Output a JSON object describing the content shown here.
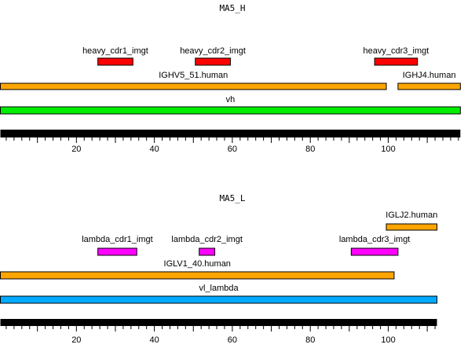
{
  "colors": {
    "cdr_heavy": "#ff0000",
    "cdr_lambda": "#ff00ff",
    "gene": "#ffa500",
    "vh": "#00ee00",
    "vl_lambda": "#00aaff",
    "scale": "#000000",
    "outline": "#000000"
  },
  "panels": [
    {
      "title": "MA5_H",
      "features": [
        {
          "name": "heavy_cdr1_imgt",
          "start": 26,
          "end": 34,
          "color": "#ff0000"
        },
        {
          "name": "heavy_cdr2_imgt",
          "start": 51,
          "end": 59,
          "color": "#ff0000"
        },
        {
          "name": "heavy_cdr3_imgt",
          "start": 97,
          "end": 107,
          "color": "#ff0000"
        },
        {
          "name": "IGHV5_51.human",
          "start": 1,
          "end": 99,
          "color": "#ffa500"
        },
        {
          "name": "IGHJ4.human",
          "start": 103,
          "end": 118,
          "color": "#ffa500"
        },
        {
          "name": "vh",
          "start": 1,
          "end": 118,
          "color": "#00ee00"
        }
      ],
      "axis": {
        "length": 118,
        "ticks": [
          20,
          40,
          60,
          80,
          100
        ]
      }
    },
    {
      "title": "MA5_L",
      "features": [
        {
          "name": "IGLJ2.human",
          "start": 100,
          "end": 112,
          "color": "#ffa500"
        },
        {
          "name": "lambda_cdr1_imgt",
          "start": 26,
          "end": 35,
          "color": "#ff00ff"
        },
        {
          "name": "lambda_cdr2_imgt",
          "start": 52,
          "end": 55,
          "color": "#ff00ff"
        },
        {
          "name": "lambda_cdr3_imgt",
          "start": 91,
          "end": 102,
          "color": "#ff00ff"
        },
        {
          "name": "IGLV1_40.human",
          "start": 1,
          "end": 101,
          "color": "#ffa500"
        },
        {
          "name": "vl_lambda",
          "start": 1,
          "end": 112,
          "color": "#00aaff"
        }
      ],
      "axis": {
        "length": 112,
        "ticks": [
          20,
          40,
          60,
          80,
          100
        ]
      }
    }
  ]
}
